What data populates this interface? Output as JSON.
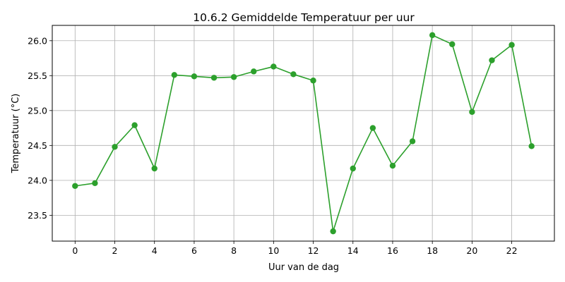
{
  "chart_data": {
    "type": "line",
    "title": "10.6.2 Gemiddelde Temperatuur per uur",
    "xlabel": "Uur van de dag",
    "ylabel": "Temperatuur (°C)",
    "x": [
      0,
      1,
      2,
      3,
      4,
      5,
      6,
      7,
      8,
      9,
      10,
      11,
      12,
      13,
      14,
      15,
      16,
      17,
      18,
      19,
      20,
      21,
      22,
      23
    ],
    "series": [
      {
        "values": [
          23.92,
          23.96,
          24.48,
          24.79,
          24.17,
          25.51,
          25.49,
          25.47,
          25.48,
          25.56,
          25.63,
          25.52,
          25.43,
          23.27,
          24.17,
          24.75,
          24.21,
          24.56,
          26.08,
          25.95,
          24.98,
          25.72,
          25.94,
          24.49
        ],
        "color": "#2ca02c",
        "marker": "circle"
      }
    ],
    "xlim": [
      -1.15,
      24.15
    ],
    "ylim": [
      23.13,
      26.22
    ],
    "xticks": [
      0,
      2,
      4,
      6,
      8,
      10,
      12,
      14,
      16,
      18,
      20,
      22
    ],
    "xtick_labels": [
      "0",
      "2",
      "4",
      "6",
      "8",
      "10",
      "12",
      "14",
      "16",
      "18",
      "20",
      "22"
    ],
    "yticks": [
      23.5,
      24.0,
      24.5,
      25.0,
      25.5,
      26.0
    ],
    "ytick_labels": [
      "23.5",
      "24.0",
      "24.5",
      "25.0",
      "25.5",
      "26.0"
    ],
    "grid": true,
    "legend": "none"
  }
}
